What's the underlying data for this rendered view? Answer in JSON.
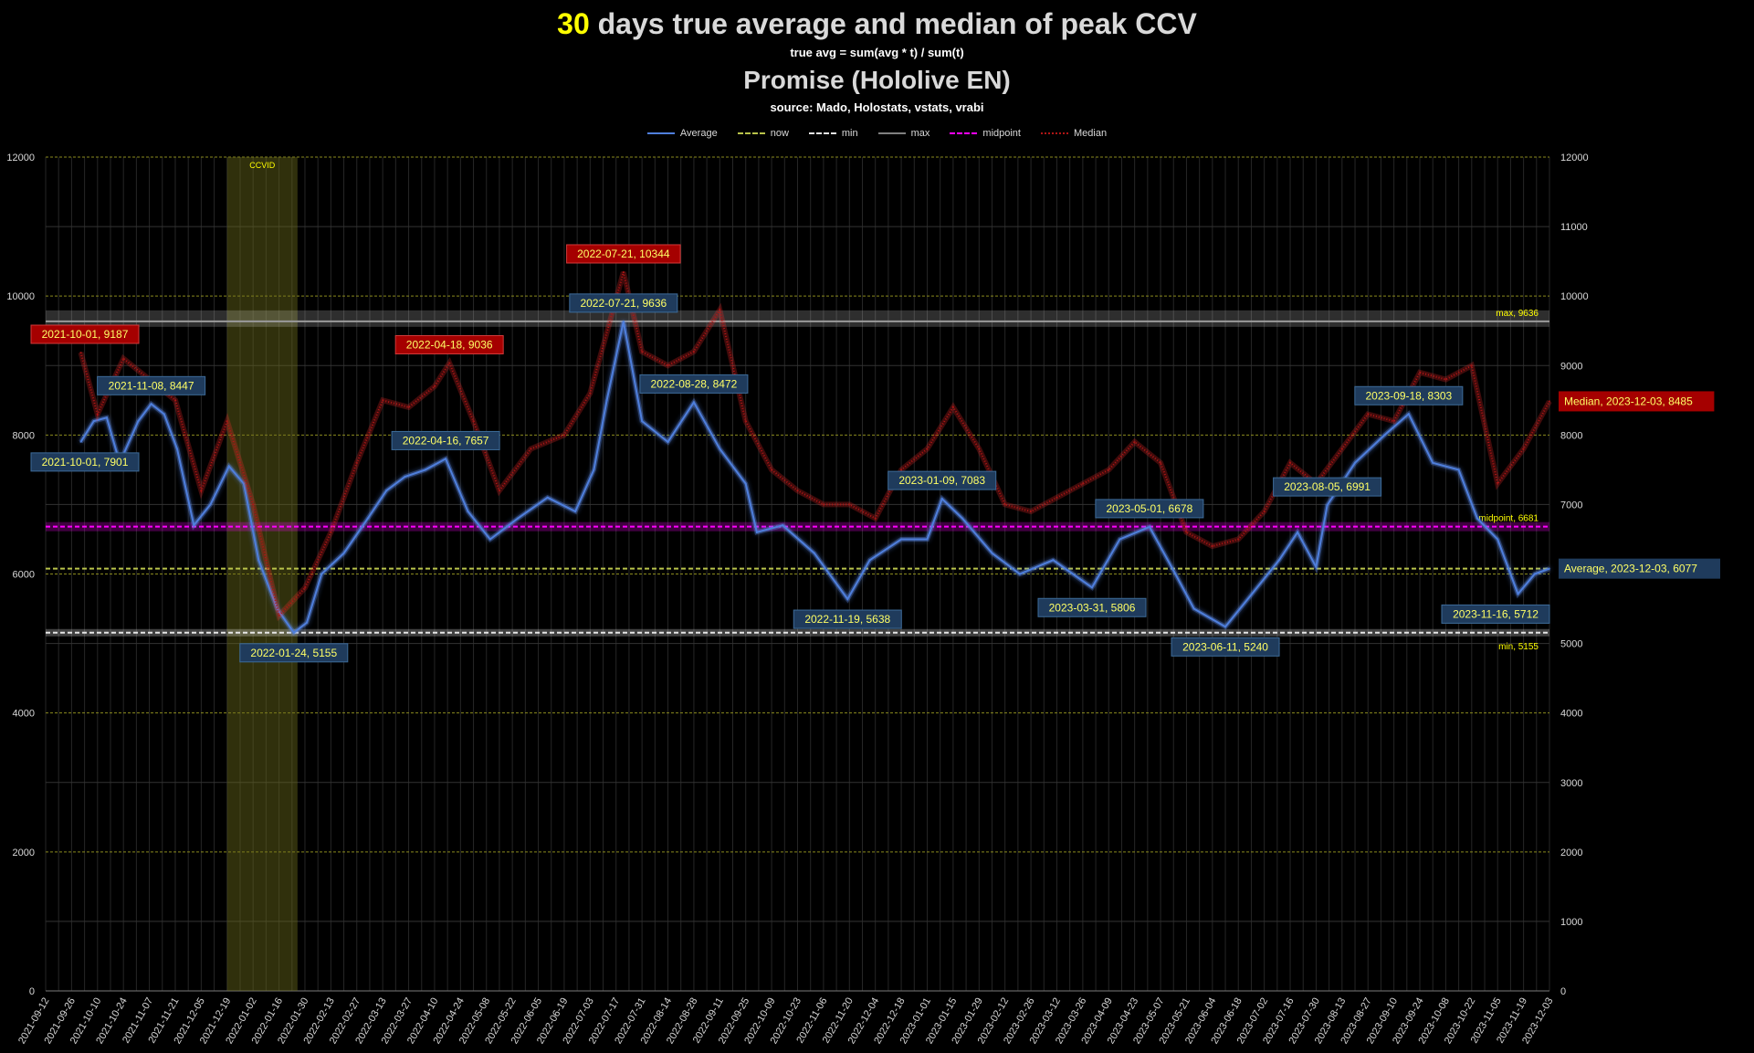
{
  "chart_data": {
    "type": "line",
    "title_highlight": "30",
    "title_rest": " days true average and median of peak CCV",
    "subtitle": "true avg = sum(avg * t) / sum(t)",
    "title2": "Promise (Hololive EN)",
    "source": "source: Mado, Holostats, vstats, vrabi",
    "xlabel": "",
    "ylabel": "",
    "ylim": [
      0,
      12000
    ],
    "yticks": [
      0,
      2000,
      4000,
      6000,
      8000,
      10000,
      12000
    ],
    "yticks_right": [
      0,
      1000,
      2000,
      3000,
      4000,
      5000,
      6000,
      7000,
      8000,
      9000,
      10000,
      11000,
      12000
    ],
    "x_start": "2021-09-12",
    "x_end": "2023-12-03",
    "x_tick_labels": [
      "2021-09-12",
      "2021-09-26",
      "2021-10-10",
      "2021-10-24",
      "2021-11-07",
      "2021-11-21",
      "2021-12-05",
      "2021-12-19",
      "2022-01-02",
      "2022-01-16",
      "2022-01-30",
      "2022-02-13",
      "2022-02-27",
      "2022-03-13",
      "2022-03-27",
      "2022-04-10",
      "2022-04-24",
      "2022-05-08",
      "2022-05-22",
      "2022-06-05",
      "2022-06-19",
      "2022-07-03",
      "2022-07-17",
      "2022-07-31",
      "2022-08-14",
      "2022-08-28",
      "2022-09-11",
      "2022-09-25",
      "2022-10-09",
      "2022-10-23",
      "2022-11-06",
      "2022-11-20",
      "2022-12-04",
      "2022-12-18",
      "2023-01-01",
      "2023-01-15",
      "2023-01-29",
      "2023-02-12",
      "2023-02-26",
      "2023-03-12",
      "2023-03-26",
      "2023-04-09",
      "2023-04-23",
      "2023-05-07",
      "2023-05-21",
      "2023-06-04",
      "2023-06-18",
      "2023-07-02",
      "2023-07-16",
      "2023-07-30",
      "2023-08-13",
      "2023-08-27",
      "2023-09-10",
      "2023-09-24",
      "2023-10-08",
      "2023-10-22",
      "2023-11-05",
      "2023-11-19",
      "2023-12-03"
    ],
    "legend": [
      {
        "name": "Average",
        "color": "#4f7fdc",
        "dash": "solid"
      },
      {
        "name": "now",
        "color": "#b9c34a",
        "dash": "dashed"
      },
      {
        "name": "min",
        "color": "#e6e6e6",
        "dash": "dashed"
      },
      {
        "name": "max",
        "color": "#808080",
        "dash": "solid"
      },
      {
        "name": "midpoint",
        "color": "#ff00ff",
        "dash": "dashed"
      },
      {
        "name": "Median",
        "color": "#b01616",
        "dash": "dotted"
      }
    ],
    "series": [
      {
        "name": "Average",
        "color": "#4f7fdc",
        "points": [
          [
            "2021-10-01",
            7901
          ],
          [
            "2021-10-08",
            8200
          ],
          [
            "2021-10-15",
            8250
          ],
          [
            "2021-10-22",
            7600
          ],
          [
            "2021-11-01",
            8200
          ],
          [
            "2021-11-08",
            8447
          ],
          [
            "2021-11-15",
            8300
          ],
          [
            "2021-11-22",
            7800
          ],
          [
            "2021-12-01",
            6700
          ],
          [
            "2021-12-10",
            7000
          ],
          [
            "2021-12-20",
            7550
          ],
          [
            "2021-12-28",
            7300
          ],
          [
            "2022-01-05",
            6200
          ],
          [
            "2022-01-15",
            5500
          ],
          [
            "2022-01-24",
            5155
          ],
          [
            "2022-01-31",
            5300
          ],
          [
            "2022-02-08",
            6000
          ],
          [
            "2022-02-20",
            6300
          ],
          [
            "2022-03-05",
            6800
          ],
          [
            "2022-03-15",
            7200
          ],
          [
            "2022-03-25",
            7400
          ],
          [
            "2022-04-05",
            7500
          ],
          [
            "2022-04-16",
            7657
          ],
          [
            "2022-04-28",
            6900
          ],
          [
            "2022-05-10",
            6500
          ],
          [
            "2022-05-25",
            6800
          ],
          [
            "2022-06-10",
            7100
          ],
          [
            "2022-06-25",
            6900
          ],
          [
            "2022-07-05",
            7500
          ],
          [
            "2022-07-12",
            8500
          ],
          [
            "2022-07-21",
            9636
          ],
          [
            "2022-07-31",
            8200
          ],
          [
            "2022-08-14",
            7900
          ],
          [
            "2022-08-28",
            8472
          ],
          [
            "2022-09-11",
            7800
          ],
          [
            "2022-09-25",
            7300
          ],
          [
            "2022-10-01",
            6600
          ],
          [
            "2022-10-15",
            6700
          ],
          [
            "2022-11-01",
            6300
          ],
          [
            "2022-11-19",
            5638
          ],
          [
            "2022-12-01",
            6200
          ],
          [
            "2022-12-18",
            6500
          ],
          [
            "2023-01-01",
            6500
          ],
          [
            "2023-01-09",
            7083
          ],
          [
            "2023-01-20",
            6800
          ],
          [
            "2023-02-05",
            6300
          ],
          [
            "2023-02-20",
            6000
          ],
          [
            "2023-03-10",
            6200
          ],
          [
            "2023-03-31",
            5806
          ],
          [
            "2023-04-15",
            6500
          ],
          [
            "2023-05-01",
            6678
          ],
          [
            "2023-05-15",
            6000
          ],
          [
            "2023-05-25",
            5500
          ],
          [
            "2023-06-11",
            5240
          ],
          [
            "2023-06-25",
            5700
          ],
          [
            "2023-07-10",
            6200
          ],
          [
            "2023-07-20",
            6600
          ],
          [
            "2023-07-30",
            6100
          ],
          [
            "2023-08-05",
            6991
          ],
          [
            "2023-08-20",
            7600
          ],
          [
            "2023-09-05",
            8000
          ],
          [
            "2023-09-18",
            8303
          ],
          [
            "2023-10-01",
            7600
          ],
          [
            "2023-10-15",
            7500
          ],
          [
            "2023-10-25",
            6800
          ],
          [
            "2023-11-05",
            6500
          ],
          [
            "2023-11-16",
            5712
          ],
          [
            "2023-11-25",
            6000
          ],
          [
            "2023-12-03",
            6077
          ]
        ]
      },
      {
        "name": "Median",
        "color": "#b01616",
        "points": [
          [
            "2021-10-01",
            9187
          ],
          [
            "2021-10-10",
            8300
          ],
          [
            "2021-10-24",
            9100
          ],
          [
            "2021-11-07",
            8800
          ],
          [
            "2021-11-21",
            8500
          ],
          [
            "2021-12-05",
            7200
          ],
          [
            "2021-12-19",
            8200
          ],
          [
            "2022-01-02",
            7000
          ],
          [
            "2022-01-16",
            5400
          ],
          [
            "2022-01-30",
            5800
          ],
          [
            "2022-02-13",
            6600
          ],
          [
            "2022-02-27",
            7600
          ],
          [
            "2022-03-13",
            8500
          ],
          [
            "2022-03-27",
            8400
          ],
          [
            "2022-04-10",
            8700
          ],
          [
            "2022-04-18",
            9036
          ],
          [
            "2022-05-01",
            8200
          ],
          [
            "2022-05-15",
            7200
          ],
          [
            "2022-06-01",
            7800
          ],
          [
            "2022-06-19",
            8000
          ],
          [
            "2022-07-03",
            8600
          ],
          [
            "2022-07-21",
            10344
          ],
          [
            "2022-07-31",
            9200
          ],
          [
            "2022-08-14",
            9000
          ],
          [
            "2022-08-28",
            9200
          ],
          [
            "2022-09-11",
            9800
          ],
          [
            "2022-09-25",
            8200
          ],
          [
            "2022-10-09",
            7500
          ],
          [
            "2022-10-23",
            7200
          ],
          [
            "2022-11-06",
            7000
          ],
          [
            "2022-11-20",
            7000
          ],
          [
            "2022-12-04",
            6800
          ],
          [
            "2022-12-18",
            7500
          ],
          [
            "2023-01-01",
            7800
          ],
          [
            "2023-01-15",
            8400
          ],
          [
            "2023-01-29",
            7800
          ],
          [
            "2023-02-12",
            7000
          ],
          [
            "2023-02-26",
            6900
          ],
          [
            "2023-03-12",
            7100
          ],
          [
            "2023-03-26",
            7300
          ],
          [
            "2023-04-09",
            7500
          ],
          [
            "2023-04-23",
            7900
          ],
          [
            "2023-05-07",
            7600
          ],
          [
            "2023-05-21",
            6600
          ],
          [
            "2023-06-04",
            6400
          ],
          [
            "2023-06-18",
            6500
          ],
          [
            "2023-07-02",
            6900
          ],
          [
            "2023-07-16",
            7600
          ],
          [
            "2023-07-30",
            7300
          ],
          [
            "2023-08-13",
            7800
          ],
          [
            "2023-08-27",
            8300
          ],
          [
            "2023-09-10",
            8200
          ],
          [
            "2023-09-24",
            8900
          ],
          [
            "2023-10-08",
            8800
          ],
          [
            "2023-10-22",
            9000
          ],
          [
            "2023-11-05",
            7300
          ],
          [
            "2023-11-19",
            7800
          ],
          [
            "2023-12-03",
            8485
          ]
        ]
      }
    ],
    "reference_lines": [
      {
        "name": "max",
        "value": 9636,
        "label": "max, 9636",
        "color": "#9a9a9a"
      },
      {
        "name": "midpoint",
        "value": 6681,
        "label": "midpoint, 6681",
        "color": "#ff00ff"
      },
      {
        "name": "now",
        "value": 6077,
        "label": "",
        "color": "#b9c34a"
      },
      {
        "name": "min",
        "value": 5155,
        "label": "min, 5155",
        "color": "#e6e6e6"
      }
    ],
    "shaded_region": {
      "label": "CCVID",
      "start": "2021-12-19",
      "end": "2022-01-26",
      "color": "#6b6a1a"
    },
    "annotations_avg": [
      {
        "date": "2021-10-01",
        "value": 7901,
        "text": "2021-10-01, 7901",
        "pos": "below"
      },
      {
        "date": "2021-11-08",
        "value": 8447,
        "text": "2021-11-08, 8447",
        "pos": "above"
      },
      {
        "date": "2022-01-24",
        "value": 5155,
        "text": "2022-01-24, 5155",
        "pos": "below"
      },
      {
        "date": "2022-04-16",
        "value": 7657,
        "text": "2022-04-16, 7657",
        "pos": "above"
      },
      {
        "date": "2022-07-21",
        "value": 9636,
        "text": "2022-07-21, 9636",
        "pos": "above"
      },
      {
        "date": "2022-08-28",
        "value": 8472,
        "text": "2022-08-28, 8472",
        "pos": "above"
      },
      {
        "date": "2022-11-19",
        "value": 5638,
        "text": "2022-11-19, 5638",
        "pos": "below"
      },
      {
        "date": "2023-01-09",
        "value": 7083,
        "text": "2023-01-09, 7083",
        "pos": "above"
      },
      {
        "date": "2023-03-31",
        "value": 5806,
        "text": "2023-03-31, 5806",
        "pos": "below"
      },
      {
        "date": "2023-05-01",
        "value": 6678,
        "text": "2023-05-01, 6678",
        "pos": "above"
      },
      {
        "date": "2023-06-11",
        "value": 5240,
        "text": "2023-06-11, 5240",
        "pos": "below"
      },
      {
        "date": "2023-08-05",
        "value": 6991,
        "text": "2023-08-05, 6991",
        "pos": "above"
      },
      {
        "date": "2023-09-18",
        "value": 8303,
        "text": "2023-09-18, 8303",
        "pos": "above"
      },
      {
        "date": "2023-11-16",
        "value": 5712,
        "text": "2023-11-16, 5712",
        "pos": "below"
      }
    ],
    "annotations_median": [
      {
        "date": "2021-10-01",
        "value": 9187,
        "text": "2021-10-01, 9187",
        "pos": "above"
      },
      {
        "date": "2022-04-18",
        "value": 9036,
        "text": "2022-04-18, 9036",
        "pos": "above"
      },
      {
        "date": "2022-07-21",
        "value": 10344,
        "text": "2022-07-21, 10344",
        "pos": "above"
      }
    ],
    "end_labels": [
      {
        "series": "Median",
        "text": "Median, 2023-12-03, 8485",
        "value": 8485
      },
      {
        "series": "Average",
        "text": "Average, 2023-12-03, 6077",
        "value": 6077
      }
    ]
  }
}
